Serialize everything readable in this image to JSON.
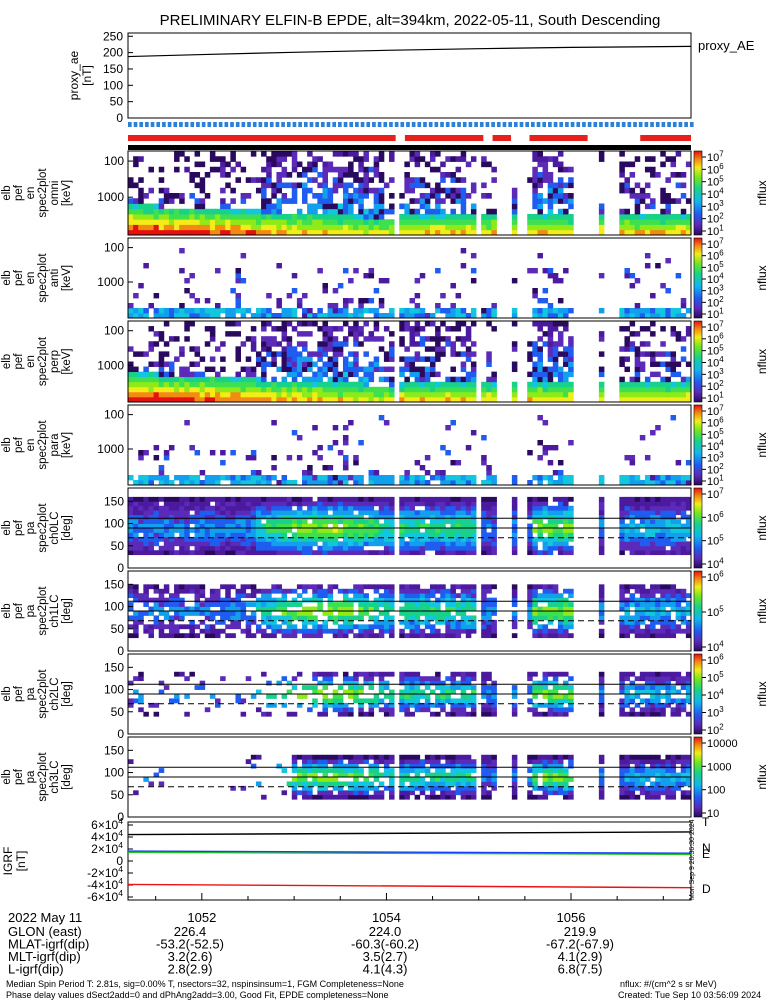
{
  "title": "PRELIMINARY ELFIN-B EPDE, alt=394km, 2022-05-11, South Descending",
  "colors": {
    "red_bar": "#e8201a",
    "blue_bar": "#2e7fd8",
    "black_bar": "#000000",
    "igrf_blue": "#1a3cff",
    "igrf_green": "#22c422",
    "igrf_red": "#ee1111"
  },
  "chart_data": [
    {
      "type": "line",
      "panel": "proxy_ae",
      "ylabel": [
        "proxy_ae",
        "[nT]"
      ],
      "legend": "proxy_AE",
      "ytick_labels": [
        "250",
        "200",
        "150",
        "100",
        "50",
        "0"
      ],
      "ylim": [
        0,
        260
      ],
      "x": [
        1051.2,
        1052,
        1053,
        1054,
        1055,
        1056,
        1057.3
      ],
      "y": [
        188,
        194,
        201,
        207,
        212,
        216,
        219
      ]
    },
    {
      "type": "heatmap",
      "panel": "energy spectrogram 1",
      "ylabel": [
        "elb",
        "pef",
        "en",
        "spec2plot",
        "omni",
        "[keV]"
      ],
      "ytick_labels": [
        "1000",
        "100"
      ],
      "yscale": "log",
      "colorbar_label": "nflux",
      "colorbar_ticks": [
        "10^7",
        "10^6",
        "10^5",
        "10^4",
        "10^3",
        "10^2",
        "10^1"
      ]
    },
    {
      "type": "heatmap",
      "panel": "energy spectrogram 2",
      "ylabel": [
        "elb",
        "pef",
        "en",
        "spec2plot",
        "anti",
        "[keV]"
      ],
      "ytick_labels": [
        "1000",
        "100"
      ],
      "yscale": "log",
      "colorbar_label": "nflux",
      "colorbar_ticks": [
        "10^7",
        "10^6",
        "10^5",
        "10^4",
        "10^3",
        "10^2",
        "10^1"
      ]
    },
    {
      "type": "heatmap",
      "panel": "energy spectrogram 3",
      "ylabel": [
        "elb",
        "pef",
        "en",
        "spec2plot",
        "perp",
        "[keV]"
      ],
      "ytick_labels": [
        "1000",
        "100"
      ],
      "yscale": "log",
      "colorbar_label": "nflux",
      "colorbar_ticks": [
        "10^7",
        "10^6",
        "10^5",
        "10^4",
        "10^3",
        "10^2",
        "10^1"
      ]
    },
    {
      "type": "heatmap",
      "panel": "energy spectrogram 4",
      "ylabel": [
        "elb",
        "pef",
        "en",
        "spec2plot",
        "para",
        "[keV]"
      ],
      "ytick_labels": [
        "1000",
        "100"
      ],
      "yscale": "log",
      "colorbar_label": "nflux",
      "colorbar_ticks": [
        "10^7",
        "10^6",
        "10^5",
        "10^4",
        "10^3",
        "10^2",
        "10^1"
      ]
    },
    {
      "type": "heatmap",
      "panel": "pitch angle ch0",
      "ylabel": [
        "elb",
        "pef",
        "pa",
        "spec2plot",
        "ch0LC",
        "[deg]"
      ],
      "ytick_labels": [
        "150",
        "100",
        "50",
        "0"
      ],
      "colorbar_label": "nflux",
      "colorbar_ticks": [
        "10^7",
        "10^6",
        "10^5",
        "10^4"
      ]
    },
    {
      "type": "heatmap",
      "panel": "pitch angle ch1",
      "ylabel": [
        "elb",
        "pef",
        "pa",
        "spec2plot",
        "ch1LC",
        "[deg]"
      ],
      "ytick_labels": [
        "150",
        "100",
        "50",
        "0"
      ],
      "colorbar_label": "nflux",
      "colorbar_ticks": [
        "10^6",
        "10^5",
        "10^4"
      ]
    },
    {
      "type": "heatmap",
      "panel": "pitch angle ch2",
      "ylabel": [
        "elb",
        "pef",
        "pa",
        "spec2plot",
        "ch2LC",
        "[deg]"
      ],
      "ytick_labels": [
        "150",
        "100",
        "50",
        "0"
      ],
      "colorbar_label": "nflux",
      "colorbar_ticks": [
        "10^6",
        "10^5",
        "10^4",
        "10^3",
        "10^2"
      ]
    },
    {
      "type": "heatmap",
      "panel": "pitch angle ch3",
      "ylabel": [
        "elb",
        "pef",
        "pa",
        "spec2plot",
        "ch3LC",
        "[deg]"
      ],
      "ytick_labels": [
        "150",
        "100",
        "50",
        "0"
      ],
      "colorbar_label": "nflux",
      "colorbar_ticks": [
        "10000",
        "1000",
        "100",
        "10"
      ]
    },
    {
      "type": "line",
      "panel": "IGRF",
      "ylabel": [
        "IGRF",
        "[nT]"
      ],
      "ytick_labels": [
        "6×10^4",
        "4×10^4",
        "2×10^4",
        "0",
        "-2×10^4",
        "-4×10^4",
        "-6×10^4"
      ],
      "ylim": [
        -65000,
        65000
      ],
      "series": [
        {
          "name": "T",
          "color": "#000000",
          "x": [
            1051.2,
            1057.3
          ],
          "y": [
            44000,
            48500
          ]
        },
        {
          "name": "N",
          "color": "#22c422",
          "x": [
            1051.2,
            1057.3
          ],
          "y": [
            14500,
            11000
          ]
        },
        {
          "name": "E",
          "color": "#1a3cff",
          "x": [
            1051.2,
            1057.3
          ],
          "y": [
            16500,
            13000
          ]
        },
        {
          "name": "D",
          "color": "#ee1111",
          "x": [
            1051.2,
            1057.3
          ],
          "y": [
            -39000,
            -44500
          ]
        }
      ],
      "side_text": "Mon Sep  9 20:36:30 2024"
    }
  ],
  "x_axis": {
    "tick_labels": [
      "1052",
      "1054",
      "1056"
    ],
    "minor_ticks_per_major": 4
  },
  "footer_table": {
    "date": "2022 May 11",
    "rows": [
      {
        "label": "GLON (east)",
        "values": [
          "226.4",
          "224.0",
          "219.9"
        ]
      },
      {
        "label": "MLAT-igrf(dip)",
        "values": [
          "-53.2(-52.5)",
          "-60.3(-60.2)",
          "-67.2(-67.9)"
        ]
      },
      {
        "label": "MLT-igrf(dip)",
        "values": [
          "3.2(2.6)",
          "3.5(2.7)",
          "4.1(2.9)"
        ]
      },
      {
        "label": "L-igrf(dip)",
        "values": [
          "2.8(2.9)",
          "4.1(4.3)",
          "6.8(7.5)"
        ]
      }
    ]
  },
  "footer_notes": {
    "line1_left": "Median Spin Period T: 2.81s, sig=0.00% T, nsectors=32, nspinsinsum=1, FGM Completeness=None",
    "line2_left": "Phase delay values dSect2add=0 and dPhAng2add=3.00, Good Fit, EPDE completeness=None",
    "line1_right": "nflux: #/(cm^2 s sr MeV)",
    "line2_right": "Created: Tue Sep 10 03:56:09 2024"
  }
}
